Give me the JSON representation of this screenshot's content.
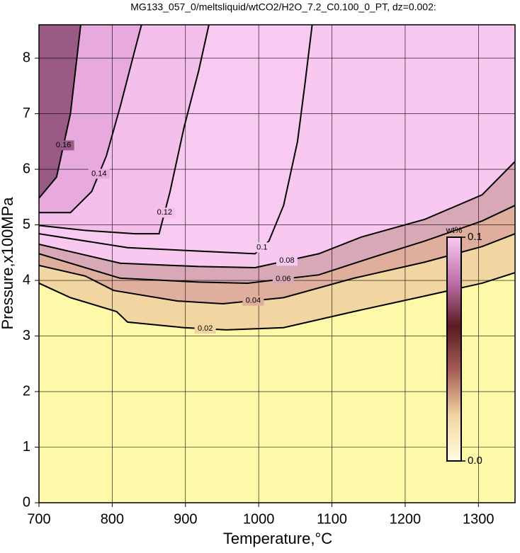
{
  "chart_data": {
    "type": "contour",
    "title": "MG133_057_0/meltsliquid/wtCO2/H2O_7.2_C0.100_0_PT, dz=0.002:",
    "x_label": "Temperature,°C",
    "y_label": "Pressure,x100MPa",
    "xlim": [
      700,
      1350
    ],
    "ylim": [
      0,
      8.6
    ],
    "xticks": [
      700,
      800,
      900,
      1000,
      1100,
      1200,
      1300
    ],
    "yticks": [
      0,
      1,
      2,
      3,
      4,
      5,
      6,
      7,
      8
    ],
    "grid": true,
    "background": "#fdf9a9",
    "contours": [
      {
        "level": 0.02,
        "color": "#f2d6a2",
        "x": [
          700,
          743,
          806,
          821,
          898,
          956,
          1034,
          1130,
          1227,
          1305,
          1350
        ],
        "y": [
          3.95,
          3.69,
          3.44,
          3.25,
          3.15,
          3.11,
          3.15,
          3.44,
          3.72,
          3.95,
          4.14
        ]
      },
      {
        "level": 0.04,
        "color": "#dfae9c",
        "x": [
          700,
          763,
          802,
          889,
          951,
          1034,
          1130,
          1227,
          1305,
          1350
        ],
        "y": [
          4.27,
          4.08,
          3.82,
          3.63,
          3.58,
          3.69,
          4.04,
          4.33,
          4.61,
          4.84
        ]
      },
      {
        "level": 0.06,
        "color": "#d9a8b6",
        "x": [
          700,
          811,
          918,
          985,
          1082,
          1159,
          1227,
          1305,
          1350
        ],
        "y": [
          4.48,
          4.04,
          3.97,
          3.95,
          4.1,
          4.43,
          4.71,
          5.07,
          5.35
        ]
      },
      {
        "level": 0.08,
        "color": "#f8c8f0",
        "x": [
          700,
          811,
          918,
          995,
          1082,
          1140,
          1227,
          1305,
          1350
        ],
        "y": [
          4.65,
          4.31,
          4.25,
          4.23,
          4.48,
          4.78,
          5.1,
          5.54,
          6.14
        ]
      },
      {
        "level": 0.1,
        "color": "#f9caf1",
        "x": [
          700,
          821,
          898,
          995,
          1014,
          1034,
          1053,
          1063,
          1073
        ],
        "y": [
          4.84,
          4.59,
          4.54,
          4.48,
          4.71,
          5.35,
          6.5,
          7.52,
          8.6
        ]
      },
      {
        "level": 0.12,
        "color": "#f4bfea",
        "x": [
          700,
          763,
          831,
          864,
          879,
          898,
          918,
          932
        ],
        "y": [
          4.99,
          4.9,
          4.84,
          4.84,
          5.6,
          6.75,
          7.77,
          8.6
        ]
      },
      {
        "level": 0.14,
        "color": "#e8aadc",
        "x": [
          700,
          743,
          772,
          792,
          811,
          831,
          840
        ],
        "y": [
          5.22,
          5.22,
          5.6,
          6.24,
          7.13,
          8.15,
          8.6
        ]
      },
      {
        "level": 0.16,
        "color": "#9a5a86",
        "x": [
          700,
          724,
          743,
          752,
          757
        ],
        "y": [
          5.48,
          5.86,
          7.0,
          8.03,
          8.6
        ]
      }
    ],
    "colorbar": {
      "label": "wt%",
      "lim": [
        0,
        0.1
      ],
      "ticks": [
        {
          "value": 0,
          "label": "0.0"
        },
        0.1
      ],
      "colors": [
        "#fffde0",
        "#f2d6a2",
        "#a8605a",
        "#5a1a20",
        "#c070a8",
        "#f8c8f0"
      ]
    }
  }
}
